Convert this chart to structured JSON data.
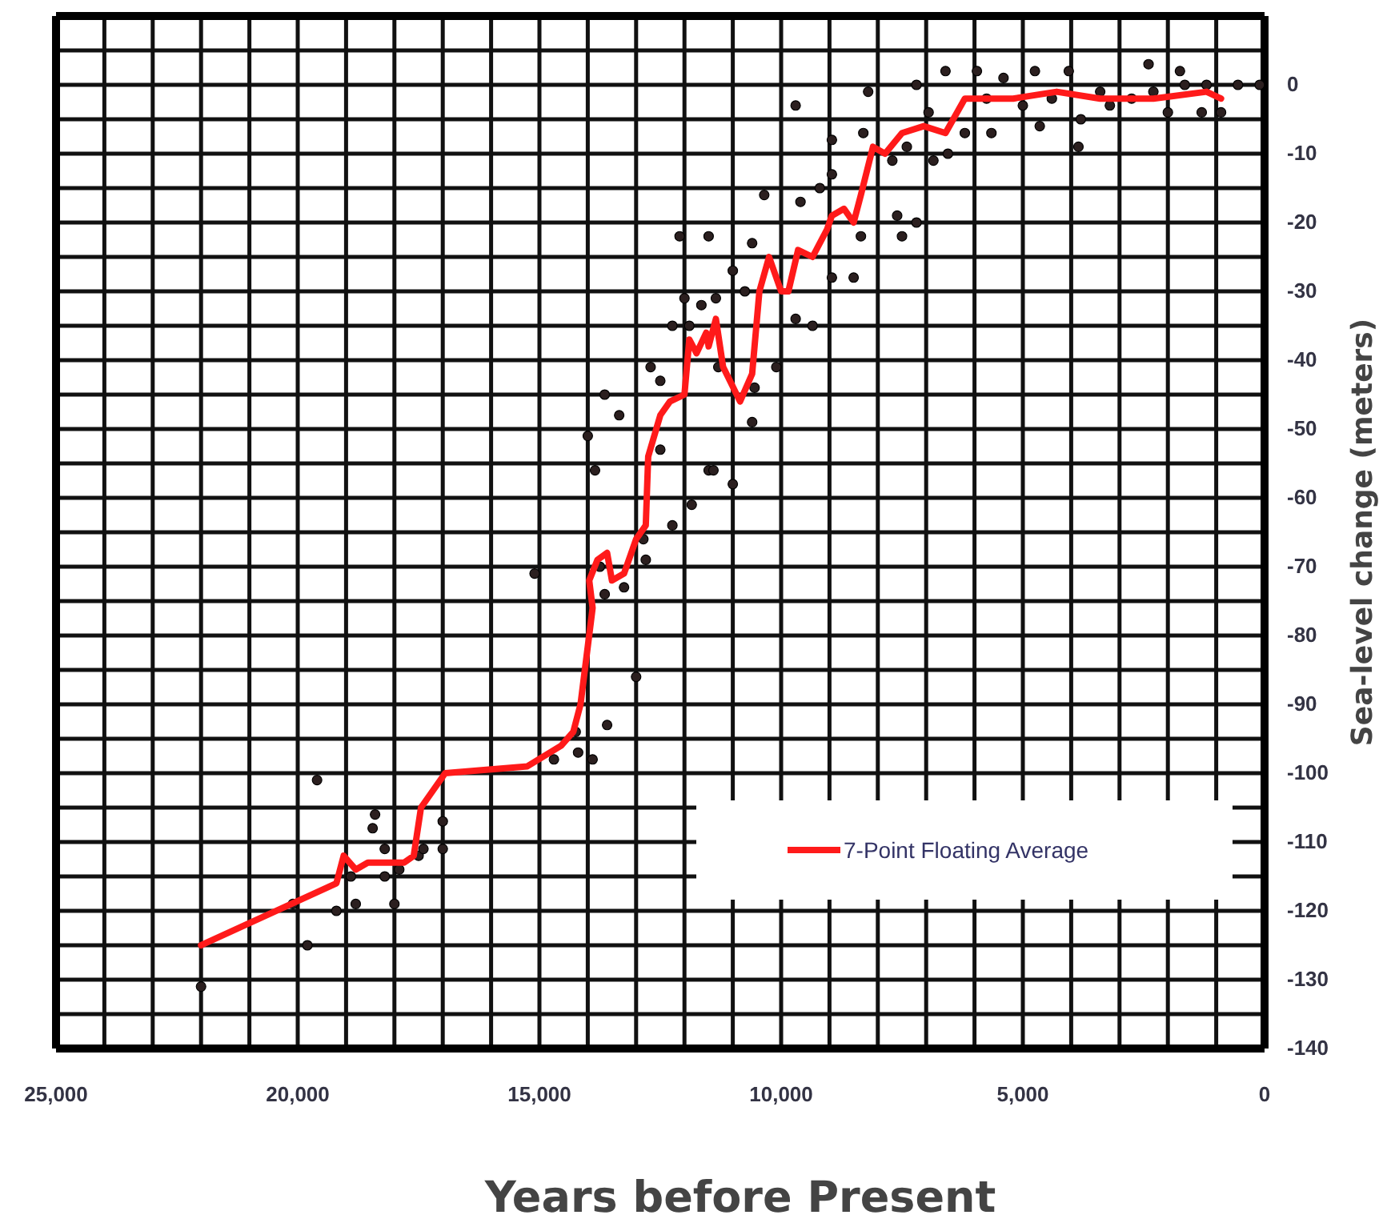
{
  "chart_data": {
    "type": "scatter",
    "xlabel": "Years before Present",
    "ylabel": "Sea-level change (meters)",
    "xlim": [
      25000,
      0
    ],
    "ylim": [
      -140,
      10
    ],
    "xticks": [
      {
        "value": 25000,
        "label": "25,000"
      },
      {
        "value": 24000,
        "label": null
      },
      {
        "value": 23000,
        "label": null
      },
      {
        "value": 22000,
        "label": null
      },
      {
        "value": 21000,
        "label": null
      },
      {
        "value": 20000,
        "label": "20,000"
      },
      {
        "value": 19000,
        "label": null
      },
      {
        "value": 18000,
        "label": null
      },
      {
        "value": 17000,
        "label": null
      },
      {
        "value": 16000,
        "label": null
      },
      {
        "value": 15000,
        "label": "15,000"
      },
      {
        "value": 14000,
        "label": null
      },
      {
        "value": 13000,
        "label": null
      },
      {
        "value": 12000,
        "label": null
      },
      {
        "value": 11000,
        "label": null
      },
      {
        "value": 10000,
        "label": "10,000"
      },
      {
        "value": 9000,
        "label": null
      },
      {
        "value": 8000,
        "label": null
      },
      {
        "value": 7000,
        "label": null
      },
      {
        "value": 6000,
        "label": null
      },
      {
        "value": 5000,
        "label": "5,000"
      },
      {
        "value": 4000,
        "label": null
      },
      {
        "value": 3000,
        "label": null
      },
      {
        "value": 2000,
        "label": null
      },
      {
        "value": 1000,
        "label": null
      },
      0
    ],
    "yticks": [
      -140,
      {
        "value": -135,
        "label": null
      },
      -130,
      {
        "value": -125,
        "label": null
      },
      -120,
      {
        "value": -115,
        "label": null
      },
      -110,
      {
        "value": -105,
        "label": null
      },
      -100,
      {
        "value": -95,
        "label": null
      },
      -90,
      {
        "value": -85,
        "label": null
      },
      -80,
      {
        "value": -75,
        "label": null
      },
      -70,
      {
        "value": -65,
        "label": null
      },
      -60,
      {
        "value": -55,
        "label": null
      },
      -50,
      {
        "value": -45,
        "label": null
      },
      -40,
      {
        "value": -35,
        "label": null
      },
      -30,
      {
        "value": -25,
        "label": null
      },
      -20,
      {
        "value": -15,
        "label": null
      },
      -10,
      {
        "value": -5,
        "label": null
      },
      0,
      {
        "value": 5,
        "label": null
      },
      {
        "value": 10,
        "label": null
      }
    ],
    "grid": true,
    "legend": "bottom right",
    "series": [
      {
        "marker": "circle",
        "color": "#2b1f1f",
        "x": [
          22000,
          19600,
          19800,
          20100,
          19200,
          18800,
          18900,
          18400,
          18450,
          18200,
          18200,
          17900,
          18000,
          17500,
          17400,
          17000,
          17000,
          14700,
          14250,
          14200,
          13900,
          13600,
          13000,
          15100,
          13750,
          13650,
          13250,
          12800,
          12850,
          12250,
          11850,
          11500,
          12500,
          13850,
          14000,
          13650,
          13350,
          12700,
          12500,
          12250,
          12000,
          11650,
          11350,
          12100,
          11500,
          11900,
          11300,
          11000,
          10600,
          10550,
          10600,
          11400,
          11000,
          10750,
          10100,
          9700,
          9350,
          10350,
          9600,
          9700,
          8950,
          8950,
          8300,
          8200,
          9200,
          8350,
          8500,
          8950,
          7700,
          7400,
          7600,
          7200,
          7500,
          6850,
          6550,
          7200,
          6600,
          6950,
          6200,
          5650,
          5950,
          5400,
          4750,
          4650,
          3850,
          3800,
          4050,
          3200,
          2400,
          2000,
          1750,
          1300,
          900,
          550,
          100,
          1200,
          2750,
          3400,
          5000,
          4400,
          5750,
          2300,
          1650
        ],
        "values": [
          -131,
          -101,
          -125,
          -119,
          -120,
          -119,
          -115,
          -106,
          -108,
          -111,
          -115,
          -114,
          -119,
          -112,
          -111,
          -107,
          -111,
          -98,
          -94,
          -97,
          -98,
          -93,
          -86,
          -71,
          -70,
          -74,
          -73,
          -69,
          -66,
          -64,
          -61,
          -56,
          -53,
          -56,
          -51,
          -45,
          -48,
          -41,
          -43,
          -35,
          -31,
          -32,
          -31,
          -22,
          -22,
          -35,
          -41,
          -27,
          -23,
          -44,
          -49,
          -56,
          -58,
          -30,
          -41,
          -34,
          -35,
          -16,
          -17,
          -3,
          -8,
          -13,
          -7,
          -1,
          -15,
          -22,
          -28,
          -28,
          -11,
          -9,
          -19,
          -20,
          -22,
          -11,
          -10,
          0,
          2,
          -4,
          -7,
          -7,
          2,
          1,
          2,
          -6,
          -9,
          -5,
          2,
          -3,
          3,
          -4,
          2,
          -4,
          -4,
          0,
          0,
          0,
          -2,
          -1,
          -3,
          -2,
          -2,
          -1,
          0
        ]
      },
      {
        "type": "line",
        "name": "7-Point Floating Average",
        "color": "#ff1a1a",
        "x": [
          22000,
          19200,
          19050,
          18800,
          18550,
          17800,
          17600,
          17450,
          16950,
          15250,
          14550,
          14300,
          14150,
          13900,
          13970,
          13800,
          13600,
          13500,
          13250,
          13000,
          12800,
          12750,
          12500,
          12300,
          12000,
          11900,
          11750,
          11550,
          11500,
          11350,
          11200,
          10850,
          10600,
          10450,
          10250,
          10000,
          9850,
          9650,
          9350,
          9050,
          8950,
          8700,
          8500,
          8350,
          8100,
          7850,
          7500,
          7050,
          6600,
          6200,
          5650,
          5200,
          4300,
          3400,
          2300,
          1200,
          900
        ],
        "values": [
          -125,
          -116,
          -112,
          -114,
          -113,
          -113,
          -112,
          -105,
          -100,
          -99,
          -96,
          -94,
          -90,
          -76,
          -72,
          -69,
          -68,
          -72,
          -71,
          -66,
          -64,
          -54,
          -48,
          -46,
          -45,
          -37,
          -39,
          -36,
          -38,
          -34,
          -41,
          -46,
          -42,
          -30,
          -25,
          -30,
          -30,
          -24,
          -25,
          -21,
          -19,
          -18,
          -20,
          -16,
          -9,
          -10,
          -7,
          -6,
          -7,
          -2,
          -2,
          -2,
          -1,
          -2,
          -2,
          -1,
          -2
        ]
      }
    ]
  }
}
